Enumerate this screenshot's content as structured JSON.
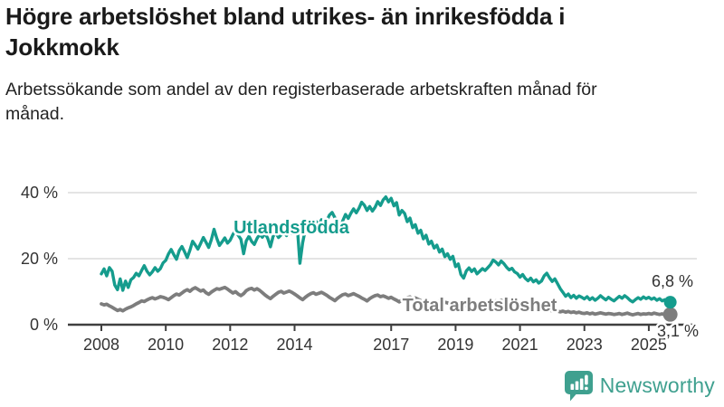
{
  "header": {
    "title": "Högre arbetslöshet bland utrikes- än inrikesfödda i Jokkmokk",
    "subtitle": "Arbetssökande som andel av den registerbaserade arbetskraften månad för månad."
  },
  "chart_data": {
    "type": "line",
    "title": "Högre arbetslöshet bland utrikes- än inrikesfödda i Jokkmokk",
    "subtitle": "Arbetssökande som andel av den registerbaserade arbetskraften månad för månad.",
    "x_start": "2008-01",
    "x_end": "2025-09",
    "x_unit": "month",
    "ylim": [
      0,
      44
    ],
    "grid": "horizontal",
    "ytick_values": [
      0,
      20,
      40
    ],
    "ytick_labels": [
      "0 %",
      "20 %",
      "40 %"
    ],
    "xticks": [
      2008,
      2010,
      2012,
      2014,
      2017,
      2019,
      2021,
      2023,
      2025
    ],
    "axis_color": "#3f3f3f",
    "grid_color": "#dcdcdc",
    "series": [
      {
        "name": "Total arbetslöshet",
        "color": "#7d7d7d",
        "end_label": "3,1 %",
        "last_value": 3.1,
        "values": [
          6.3,
          6.0,
          6.2,
          5.7,
          5.3,
          4.8,
          4.3,
          4.6,
          4.2,
          4.7,
          5.1,
          5.4,
          5.8,
          6.3,
          6.7,
          7.2,
          7.0,
          7.5,
          7.9,
          8.2,
          7.8,
          8.1,
          8.5,
          8.3,
          8.0,
          7.6,
          8.2,
          8.8,
          9.3,
          9.0,
          9.6,
          10.2,
          10.6,
          10.1,
          10.8,
          11.2,
          10.7,
          10.2,
          10.5,
          9.7,
          9.2,
          9.9,
          10.4,
          10.9,
          10.7,
          11.0,
          11.3,
          10.8,
          10.2,
          9.6,
          10.0,
          9.3,
          8.8,
          9.4,
          10.3,
          10.8,
          11.0,
          10.5,
          10.9,
          10.4,
          9.7,
          9.0,
          8.4,
          7.9,
          8.6,
          9.2,
          9.8,
          10.1,
          9.6,
          9.9,
          10.2,
          9.8,
          9.3,
          8.7,
          8.1,
          7.6,
          8.3,
          8.9,
          9.4,
          9.7,
          9.2,
          9.5,
          9.8,
          9.4,
          8.9,
          8.3,
          7.8,
          7.3,
          8.0,
          8.6,
          9.1,
          9.3,
          8.8,
          9.1,
          9.4,
          9.0,
          8.6,
          8.1,
          7.7,
          7.2,
          7.9,
          8.4,
          8.8,
          9.0,
          8.5,
          8.7,
          8.4,
          8.0,
          8.3,
          7.8,
          7.4,
          6.9,
          7.5,
          7.9,
          8.2,
          8.4,
          7.9,
          8.1,
          7.7,
          7.3,
          7.0,
          6.6,
          6.2,
          5.8,
          6.4,
          6.8,
          7.1,
          7.3,
          6.8,
          6.6,
          6.3,
          6.0,
          5.7,
          5.4,
          5.1,
          5.5,
          5.9,
          6.2,
          6.5,
          6.3,
          5.9,
          6.1,
          6.4,
          6.6,
          6.3,
          6.0,
          6.7,
          7.2,
          7.0,
          7.4,
          7.1,
          6.8,
          6.5,
          6.2,
          5.9,
          5.6,
          5.3,
          5.6,
          5.2,
          4.9,
          5.1,
          4.8,
          5.0,
          4.6,
          4.8,
          4.5,
          4.7,
          4.4,
          4.2,
          4.4,
          4.1,
          3.9,
          4.1,
          3.8,
          4.0,
          3.7,
          3.9,
          3.6,
          3.8,
          3.5,
          3.4,
          3.6,
          3.3,
          3.5,
          3.2,
          3.4,
          3.6,
          3.4,
          3.2,
          3.4,
          3.3,
          3.1,
          3.2,
          3.4,
          3.1,
          3.3,
          3.5,
          3.2,
          3.0,
          3.2,
          3.4,
          3.1,
          3.3,
          3.2,
          3.4,
          3.2,
          3.5,
          3.3,
          3.1,
          3.3,
          3.0,
          3.2,
          3.1
        ]
      },
      {
        "name": "Utlandsfödda",
        "color": "#159c8d",
        "end_label": "6,8 %",
        "last_value": 6.8,
        "values": [
          15.4,
          16.9,
          14.8,
          17.3,
          16.2,
          12.0,
          10.6,
          13.9,
          10.4,
          13.2,
          11.3,
          13.6,
          14.3,
          15.6,
          14.8,
          16.4,
          17.9,
          16.2,
          15.1,
          16.0,
          17.3,
          16.2,
          17.0,
          18.7,
          19.5,
          21.4,
          22.8,
          21.2,
          19.8,
          22.4,
          23.7,
          22.1,
          20.3,
          22.6,
          25.3,
          24.1,
          22.9,
          24.6,
          26.4,
          25.0,
          23.4,
          25.8,
          28.9,
          26.2,
          24.0,
          25.1,
          26.3,
          24.7,
          25.6,
          27.3,
          28.6,
          27.1,
          25.9,
          21.5,
          25.4,
          26.8,
          25.2,
          24.3,
          26.1,
          27.4,
          26.5,
          27.7,
          26.2,
          23.6,
          26.8,
          27.9,
          26.4,
          27.2,
          28.3,
          27.0,
          28.8,
          27.6,
          28.4,
          29.6,
          18.6,
          24.8,
          28.9,
          30.2,
          29.1,
          30.5,
          31.3,
          30.0,
          31.8,
          30.6,
          31.5,
          33.2,
          34.0,
          32.4,
          30.9,
          29.3,
          31.6,
          33.4,
          32.2,
          33.8,
          35.1,
          33.9,
          35.3,
          37.1,
          36.2,
          34.6,
          35.8,
          34.4,
          35.6,
          37.3,
          36.1,
          37.8,
          38.7,
          37.2,
          38.3,
          36.0,
          37.0,
          33.2,
          34.6,
          33.7,
          31.2,
          32.3,
          29.4,
          30.3,
          27.7,
          28.6,
          26.0,
          27.1,
          24.4,
          25.3,
          23.2,
          24.1,
          22.0,
          22.9,
          20.6,
          21.5,
          19.8,
          20.7,
          17.6,
          18.4,
          15.2,
          14.1,
          16.3,
          17.2,
          16.1,
          16.9,
          15.4,
          16.2,
          17.0,
          16.4,
          17.3,
          18.2,
          19.6,
          19.0,
          18.1,
          19.3,
          18.5,
          17.4,
          16.6,
          17.1,
          16.0,
          15.5,
          14.4,
          15.2,
          14.0,
          13.3,
          14.1,
          13.0,
          13.6,
          12.6,
          13.2,
          14.8,
          15.6,
          14.2,
          13.1,
          13.9,
          12.4,
          10.9,
          9.8,
          8.6,
          9.3,
          8.2,
          8.9,
          8.0,
          8.7,
          8.3,
          7.8,
          8.5,
          7.6,
          8.2,
          7.4,
          8.0,
          8.8,
          8.1,
          7.5,
          8.3,
          7.7,
          7.2,
          7.9,
          8.6,
          8.0,
          8.8,
          8.2,
          7.4,
          6.9,
          7.6,
          8.2,
          7.7,
          8.4,
          7.9,
          8.3,
          7.7,
          8.1,
          7.4,
          7.9,
          7.2,
          7.6,
          7.0,
          6.8
        ]
      }
    ]
  },
  "footer": {
    "brand": "Newsworthy",
    "logo_color": "#3fa08f"
  }
}
